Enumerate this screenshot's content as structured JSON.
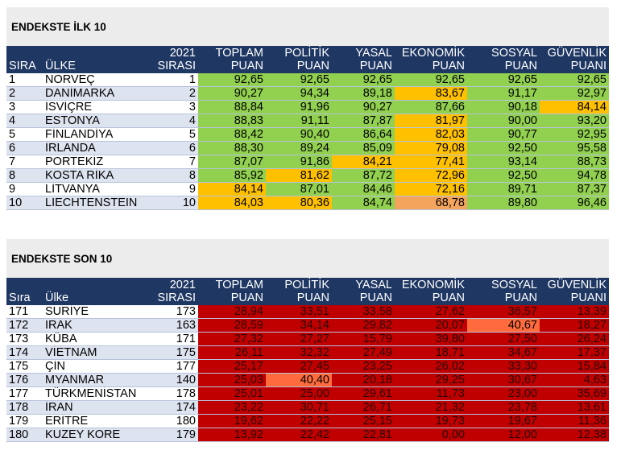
{
  "colors": {
    "header_bg": "#1f3763",
    "green": "#92d050",
    "yellow": "#ffc000",
    "light_yellow": "#f7d04a",
    "orange": "#f4a45c",
    "red": "#c00000",
    "bright_red": "#ff6b3d"
  },
  "headers": {
    "sira": "SIRA",
    "ulke": "ÜLKE",
    "rank2021": "2021\nSIRASI",
    "toplam": "TOPLAM\nPUAN",
    "politik": "POLİTİK\nPUAN",
    "yasal": "YASAL\nPUAN",
    "ekonomik": "EKONOMİK\nPUAN",
    "sosyal": "SOSYAL\nPUAN",
    "guvenlik": "GÜVENLİK\nPUANI"
  },
  "headers_bottom": {
    "sira": "Sıra",
    "ulke": "Ülke"
  },
  "top10": {
    "title": "ENDEKSTE İLK 10",
    "rows": [
      {
        "sira": "1",
        "ulke": "NORVEÇ",
        "r2021": "1",
        "vals": [
          "92,65",
          "92,65",
          "92,65",
          "92,65",
          "92,65",
          "92,65"
        ],
        "c": [
          "g",
          "g",
          "g",
          "g",
          "g",
          "g"
        ]
      },
      {
        "sira": "2",
        "ulke": "DANİMARKA",
        "r2021": "2",
        "vals": [
          "90,27",
          "94,34",
          "89,18",
          "83,67",
          "91,17",
          "92,97"
        ],
        "c": [
          "g",
          "g",
          "g",
          "y",
          "g",
          "g"
        ]
      },
      {
        "sira": "3",
        "ulke": "İSVİÇRE",
        "r2021": "3",
        "vals": [
          "88,84",
          "91,96",
          "90,27",
          "87,66",
          "90,18",
          "84,14"
        ],
        "c": [
          "g",
          "g",
          "g",
          "g",
          "g",
          "y"
        ]
      },
      {
        "sira": "4",
        "ulke": "ESTONYA",
        "r2021": "4",
        "vals": [
          "88,83",
          "91,11",
          "87,87",
          "81,97",
          "90,00",
          "93,20"
        ],
        "c": [
          "g",
          "g",
          "g",
          "y",
          "g",
          "g"
        ]
      },
      {
        "sira": "5",
        "ulke": "FİNLANDİYA",
        "r2021": "5",
        "vals": [
          "88,42",
          "90,40",
          "86,64",
          "82,03",
          "90,77",
          "92,95"
        ],
        "c": [
          "g",
          "g",
          "g",
          "y",
          "g",
          "g"
        ]
      },
      {
        "sira": "6",
        "ulke": "İRLANDA",
        "r2021": "6",
        "vals": [
          "88,30",
          "89,24",
          "85,09",
          "79,08",
          "92,50",
          "95,58"
        ],
        "c": [
          "g",
          "g",
          "g",
          "y",
          "g",
          "g"
        ]
      },
      {
        "sira": "7",
        "ulke": "PORTEKİZ",
        "r2021": "7",
        "vals": [
          "87,07",
          "91,86",
          "84,21",
          "77,41",
          "93,14",
          "88,73"
        ],
        "c": [
          "g",
          "g",
          "y",
          "y",
          "g",
          "g"
        ]
      },
      {
        "sira": "8",
        "ulke": "KOSTA RİKA",
        "r2021": "8",
        "vals": [
          "85,92",
          "81,62",
          "87,72",
          "72,96",
          "92,50",
          "94,78"
        ],
        "c": [
          "g",
          "y",
          "g",
          "y",
          "g",
          "g"
        ]
      },
      {
        "sira": "9",
        "ulke": "LİTVANYA",
        "r2021": "9",
        "vals": [
          "84,14",
          "87,01",
          "84,46",
          "72,16",
          "89,71",
          "87,37"
        ],
        "c": [
          "y",
          "g",
          "g",
          "y",
          "g",
          "g"
        ]
      },
      {
        "sira": "10",
        "ulke": "LIECHTENSTEIN",
        "r2021": "10",
        "vals": [
          "84,03",
          "80,36",
          "84,74",
          "68,78",
          "89,80",
          "96,46"
        ],
        "c": [
          "y",
          "y",
          "g",
          "o",
          "g",
          "g"
        ]
      }
    ]
  },
  "bottom10": {
    "title": "ENDEKSTE SON 10",
    "rows": [
      {
        "sira": "171",
        "ulke": "SURİYE",
        "r2021": "173",
        "vals": [
          "28,94",
          "33,51",
          "33,58",
          "27,62",
          "36,57",
          "13,39"
        ],
        "c": [
          "r",
          "r",
          "r",
          "r",
          "r",
          "r"
        ]
      },
      {
        "sira": "172",
        "ulke": "IRAK",
        "r2021": "163",
        "vals": [
          "28,59",
          "34,14",
          "29,82",
          "20,07",
          "40,67",
          "18,27"
        ],
        "c": [
          "r",
          "r",
          "r",
          "r",
          "b",
          "r"
        ]
      },
      {
        "sira": "173",
        "ulke": "KÜBA",
        "r2021": "171",
        "vals": [
          "27,32",
          "27,27",
          "15,79",
          "39,80",
          "27,50",
          "26,24"
        ],
        "c": [
          "r",
          "r",
          "r",
          "r",
          "r",
          "r"
        ]
      },
      {
        "sira": "174",
        "ulke": "VİETNAM",
        "r2021": "175",
        "vals": [
          "26,11",
          "32,32",
          "27,49",
          "18,71",
          "34,67",
          "17,37"
        ],
        "c": [
          "r",
          "r",
          "r",
          "r",
          "r",
          "r"
        ]
      },
      {
        "sira": "175",
        "ulke": "ÇİN",
        "r2021": "177",
        "vals": [
          "25,17",
          "27,45",
          "23,25",
          "26,02",
          "33,30",
          "15,84"
        ],
        "c": [
          "r",
          "r",
          "r",
          "r",
          "r",
          "r"
        ]
      },
      {
        "sira": "176",
        "ulke": "MYANMAR",
        "r2021": "140",
        "vals": [
          "25,03",
          "40,40",
          "20,18",
          "29,25",
          "30,67",
          "4,63"
        ],
        "c": [
          "r",
          "b",
          "r",
          "r",
          "r",
          "r"
        ]
      },
      {
        "sira": "177",
        "ulke": "TÜRKMENİSTAN",
        "r2021": "178",
        "vals": [
          "25,01",
          "25,00",
          "29,61",
          "11,73",
          "23,00",
          "35,69"
        ],
        "c": [
          "r",
          "r",
          "r",
          "r",
          "r",
          "r"
        ]
      },
      {
        "sira": "178",
        "ulke": "İRAN",
        "r2021": "174",
        "vals": [
          "23,22",
          "30,71",
          "26,71",
          "21,32",
          "23,78",
          "13,61"
        ],
        "c": [
          "r",
          "r",
          "r",
          "r",
          "r",
          "r"
        ]
      },
      {
        "sira": "179",
        "ulke": "ERİTRE",
        "r2021": "180",
        "vals": [
          "19,62",
          "22,22",
          "25,15",
          "19,73",
          "19,67",
          "11,36"
        ],
        "c": [
          "r",
          "r",
          "r",
          "r",
          "r",
          "r"
        ]
      },
      {
        "sira": "180",
        "ulke": "KUZEY KORE",
        "r2021": "179",
        "vals": [
          "13,92",
          "22,42",
          "22,81",
          "0,00",
          "12,00",
          "12,38"
        ],
        "c": [
          "r",
          "r",
          "r",
          "r",
          "r",
          "r"
        ]
      }
    ]
  }
}
